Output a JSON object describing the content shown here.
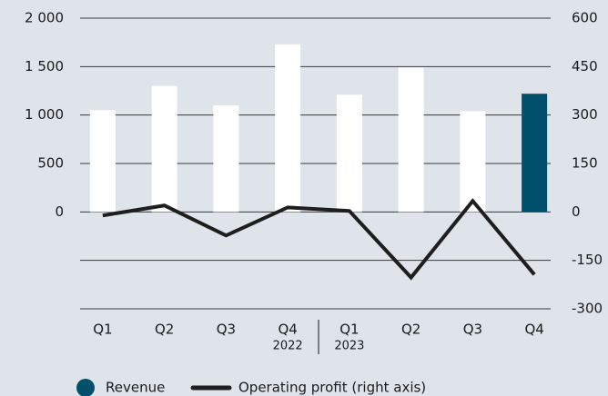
{
  "chart_data": {
    "type": "bar_line",
    "categories": [
      "Q1",
      "Q2",
      "Q3",
      "Q4",
      "Q1",
      "Q2",
      "Q3",
      "Q4"
    ],
    "years": [
      null,
      null,
      null,
      "2022",
      "2023",
      null,
      null,
      null
    ],
    "series": [
      {
        "name": "Revenue",
        "type": "bar",
        "color": "#004f6b",
        "bar_colors": [
          "#ffffff",
          "#ffffff",
          "#ffffff",
          "#ffffff",
          "#ffffff",
          "#ffffff",
          "#ffffff",
          "#004f6b"
        ],
        "values": [
          1050,
          1300,
          1100,
          1730,
          1210,
          1490,
          1040,
          1220
        ]
      },
      {
        "name": "Operating profit (right axis)",
        "type": "line",
        "color": "#1e1e1e",
        "axis": "y2",
        "values": [
          -11,
          20,
          -73,
          14,
          3,
          -203,
          34,
          -194
        ]
      }
    ],
    "ylim": [
      -1000,
      2000
    ],
    "yticks": [
      {
        "value": 2000,
        "label": "2 000"
      },
      {
        "value": 1500,
        "label": "1 500"
      },
      {
        "value": 1000,
        "label": "1 000"
      },
      500,
      0
    ],
    "y2lim": [
      -300,
      600
    ],
    "y2ticks": [
      600,
      450,
      300,
      150,
      0,
      -150,
      -300
    ],
    "grid": true
  }
}
